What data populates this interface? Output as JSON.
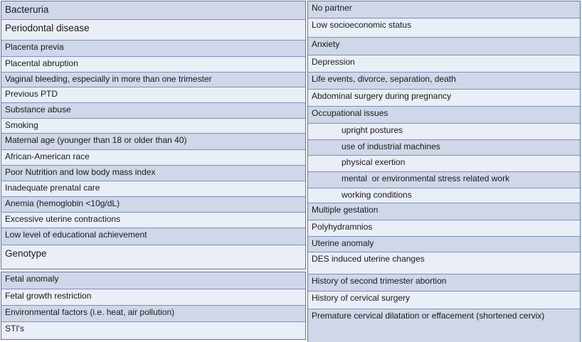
{
  "colors": {
    "row_blue": "#cfd7e8",
    "row_light": "#e9eef7",
    "inner_border": "#7d90bd",
    "outer_border": "#5c73a6",
    "text": "#1a1a1a",
    "background": "#ffffff"
  },
  "table": {
    "left_column": {
      "sections": [
        {
          "rows": [
            {
              "text": "Bacteruria",
              "emphasis": true
            },
            {
              "text": "Periodontal disease",
              "emphasis": true
            },
            {
              "text": "Placenta previa"
            },
            {
              "text": "Placental abruption"
            },
            {
              "text": "Vaginal bleeding, especially in more than one trimester"
            },
            {
              "text": "Previous PTD"
            },
            {
              "text": "Substance abuse"
            },
            {
              "text": "Smoking"
            },
            {
              "text": "Maternal age (younger than 18 or older than 40)"
            },
            {
              "text": "African-American race"
            },
            {
              "text": "Poor Nutrition and low body mass index"
            },
            {
              "text": "Inadequate prenatal care"
            },
            {
              "text": "Anemia (hemoglobin <10g/dL)"
            },
            {
              "text": "Excessive uterine contractions"
            },
            {
              "text": "Low level of educational achievement"
            },
            {
              "text": "Genotype",
              "emphasis": true
            }
          ]
        },
        {
          "rows": [
            {
              "text": "Fetal anomaly"
            },
            {
              "text": "Fetal growth restriction"
            },
            {
              "text": "Environmental factors (i.e. heat, air pollution)"
            },
            {
              "text": "STI's"
            }
          ]
        }
      ]
    },
    "right_column": {
      "rows": [
        {
          "text": "No partner"
        },
        {
          "text": "Low socioeconomic status"
        },
        {
          "text": "Anxiety"
        },
        {
          "text": "Depression"
        },
        {
          "text": "Life events, divorce, separation, death"
        },
        {
          "text": "Abdominal surgery during pregnancy"
        },
        {
          "text": "Occupational issues"
        },
        {
          "text": "upright postures",
          "indent": true
        },
        {
          "text": "use of industrial machines",
          "indent": true
        },
        {
          "text": "physical exertion",
          "indent": true
        },
        {
          "text": "mental  or environmental stress related work",
          "indent": true
        },
        {
          "text": "working conditions",
          "indent": true
        },
        {
          "text": "Multiple gestation"
        },
        {
          "text": "Polyhydramnios"
        },
        {
          "text": "Uterine anomaly"
        },
        {
          "text": "DES induced uterine changes"
        },
        {
          "text": "History of second trimester abortion"
        },
        {
          "text": "History of cervical surgery"
        },
        {
          "text": "Premature cervical dilatation or effacement (shortened cervix)"
        }
      ]
    }
  }
}
